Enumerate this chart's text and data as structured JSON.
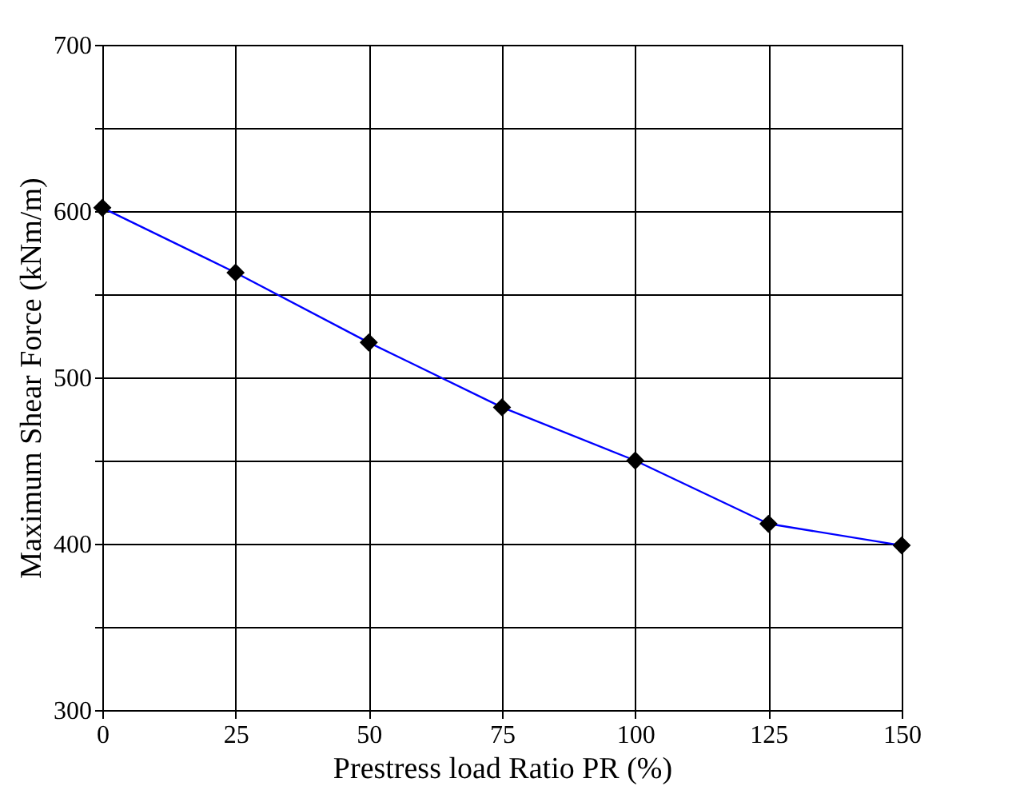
{
  "chart_data": {
    "type": "line",
    "xlabel": "Prestress load Ratio PR (%)",
    "ylabel": "Maximum Shear Force (kNm/m)",
    "x": [
      0,
      25,
      50,
      75,
      100,
      125,
      150
    ],
    "series": [
      {
        "color": "#0000ff",
        "values": [
          602,
          563,
          521,
          482,
          450,
          412,
          399
        ]
      }
    ],
    "xlim": [
      0,
      150
    ],
    "xticks": [
      0,
      25,
      50,
      75,
      100,
      125,
      150
    ],
    "ylim": [
      300,
      700
    ],
    "yticks": [
      300,
      {
        "value": 350,
        "label": null
      },
      400,
      {
        "value": 450,
        "label": null
      },
      500,
      {
        "value": 550,
        "label": null
      },
      600,
      {
        "value": 650,
        "label": null
      },
      700
    ],
    "grid": true,
    "marker": "diamond",
    "line_style": "solid"
  }
}
